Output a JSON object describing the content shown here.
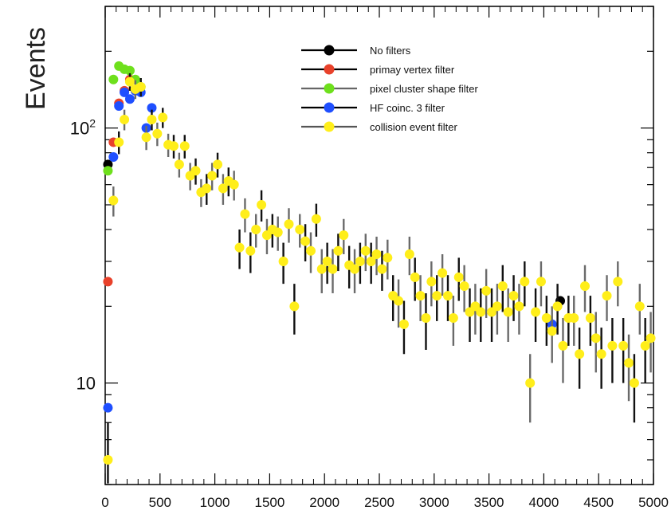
{
  "chart_data": {
    "type": "scatter",
    "title": "",
    "xlabel": "",
    "ylabel": "Events",
    "xlim": [
      0,
      5000
    ],
    "ylim": [
      4,
      300
    ],
    "yscale": "log",
    "grid": false,
    "legend_position": "top-right",
    "x_ticks": [
      0,
      500,
      1000,
      1500,
      2000,
      2500,
      3000,
      3500,
      4000,
      4500,
      5000
    ],
    "x_tick_labels": [
      "0",
      "500",
      "1000",
      "1500",
      "2000",
      "2500",
      "3000",
      "3500",
      "4000",
      "4500",
      "5000"
    ],
    "y_ticks": [
      {
        "value": 10,
        "base": "10",
        "exp": ""
      },
      {
        "value": 100,
        "base": "10",
        "exp": "2"
      }
    ],
    "series": [
      {
        "name": "No filters",
        "color": "#000000",
        "x": [
          25,
          4150
        ],
        "y": [
          72,
          21
        ]
      },
      {
        "name": "primay vertex filter",
        "color": "#e8412a",
        "x": [
          25,
          75,
          125,
          175,
          225
        ],
        "y": [
          25,
          88,
          125,
          140,
          155
        ]
      },
      {
        "name": "pixel cluster shape filter",
        "color": "#6ee01c",
        "x": [
          25,
          75,
          125,
          175,
          225,
          275,
          325
        ],
        "y": [
          68,
          155,
          175,
          170,
          168,
          155,
          145
        ]
      },
      {
        "name": "HF coinc. 3 filter",
        "color": "#1f4fff",
        "x": [
          25,
          75,
          125,
          175,
          225,
          275,
          325,
          375,
          425,
          4075
        ],
        "y": [
          8,
          77,
          122,
          138,
          130,
          140,
          138,
          100,
          120,
          17
        ]
      },
      {
        "name": "collision event filter",
        "color": "#ffee1a",
        "x": [
          25,
          75,
          125,
          175,
          225,
          275,
          325,
          375,
          425,
          475,
          525,
          575,
          625,
          675,
          725,
          775,
          825,
          875,
          925,
          975,
          1025,
          1075,
          1125,
          1175,
          1225,
          1275,
          1325,
          1375,
          1425,
          1475,
          1525,
          1575,
          1625,
          1675,
          1725,
          1775,
          1825,
          1875,
          1925,
          1975,
          2025,
          2075,
          2125,
          2175,
          2225,
          2275,
          2325,
          2375,
          2425,
          2475,
          2525,
          2575,
          2625,
          2675,
          2725,
          2775,
          2825,
          2875,
          2925,
          2975,
          3025,
          3075,
          3125,
          3175,
          3225,
          3275,
          3325,
          3375,
          3425,
          3475,
          3525,
          3575,
          3625,
          3675,
          3725,
          3775,
          3825,
          3875,
          3925,
          3975,
          4025,
          4075,
          4125,
          4175,
          4225,
          4275,
          4325,
          4375,
          4425,
          4475,
          4525,
          4575,
          4625,
          4675,
          4725,
          4775,
          4825,
          4875,
          4925,
          4975
        ],
        "y": [
          5,
          52,
          88,
          108,
          152,
          142,
          145,
          92,
          108,
          95,
          110,
          86,
          85,
          72,
          85,
          65,
          68,
          56,
          58,
          65,
          72,
          58,
          62,
          60,
          34,
          46,
          33,
          40,
          50,
          38,
          40,
          39,
          30,
          42,
          20,
          40,
          36,
          33,
          44,
          28,
          30,
          28,
          33,
          38,
          29,
          28,
          30,
          33,
          30,
          32,
          28,
          31,
          22,
          21,
          17,
          32,
          26,
          22,
          18,
          25,
          22,
          27,
          22,
          18,
          26,
          24,
          19,
          20,
          19,
          23,
          19,
          20,
          24,
          19,
          22,
          20,
          25,
          10,
          19,
          25,
          18,
          16,
          20,
          14,
          18,
          18,
          13,
          24,
          18,
          15,
          13,
          22,
          14,
          25,
          14,
          12,
          10,
          20,
          14,
          15
        ],
        "yerr": [
          2,
          7,
          9,
          10,
          12,
          12,
          12,
          10,
          10,
          10,
          10,
          9,
          9,
          8,
          9,
          8,
          8,
          7,
          8,
          8,
          8,
          8,
          8,
          8,
          6,
          7,
          6,
          6,
          7,
          6,
          6,
          6,
          5.5,
          6.5,
          4.5,
          6,
          6,
          6,
          6.5,
          5.5,
          5.5,
          5.5,
          5.5,
          6,
          5.5,
          5.5,
          5.5,
          5.5,
          5.5,
          5.5,
          5,
          5.5,
          4.5,
          4.5,
          4,
          5.5,
          5,
          4.5,
          4.5,
          5,
          4.5,
          5,
          4.5,
          4,
          5,
          5,
          4.5,
          4.5,
          4.5,
          5,
          4.5,
          4.5,
          5,
          4.5,
          4.5,
          4.5,
          5,
          3,
          4.5,
          5,
          4,
          4,
          4.5,
          4,
          4,
          4,
          3.5,
          5,
          4,
          4,
          3.5,
          4.5,
          4,
          5,
          4,
          3.5,
          3,
          4.5,
          4,
          4
        ]
      }
    ]
  }
}
